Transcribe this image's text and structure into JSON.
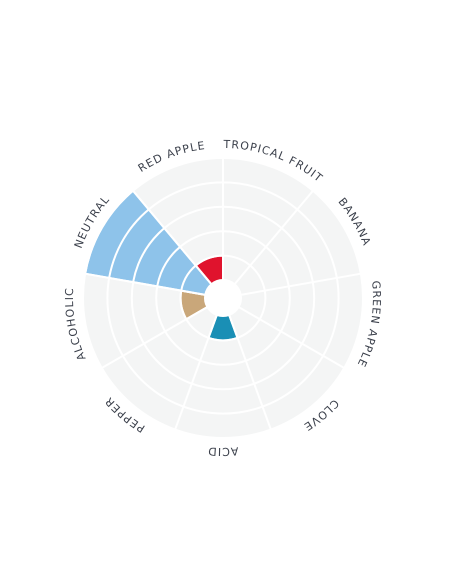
{
  "chart_data": {
    "type": "polar-bar",
    "categories": [
      "TROPICAL FRUIT",
      "BANANA",
      "GREEN APPLE",
      "CLOVE",
      "ACID",
      "PEPPER",
      "ALCOHOLIC",
      "NEUTRAL",
      "RED APPLE"
    ],
    "values": [
      0,
      0,
      0,
      0,
      1,
      0,
      1,
      5,
      1
    ],
    "colors": [
      null,
      null,
      null,
      null,
      "#1a8fb5",
      null,
      "#c9a77a",
      "#8ec3ea",
      "#e0132d"
    ],
    "ylim": [
      0,
      5
    ],
    "yticks": [
      1,
      2,
      3,
      4,
      5
    ],
    "grid": true
  }
}
